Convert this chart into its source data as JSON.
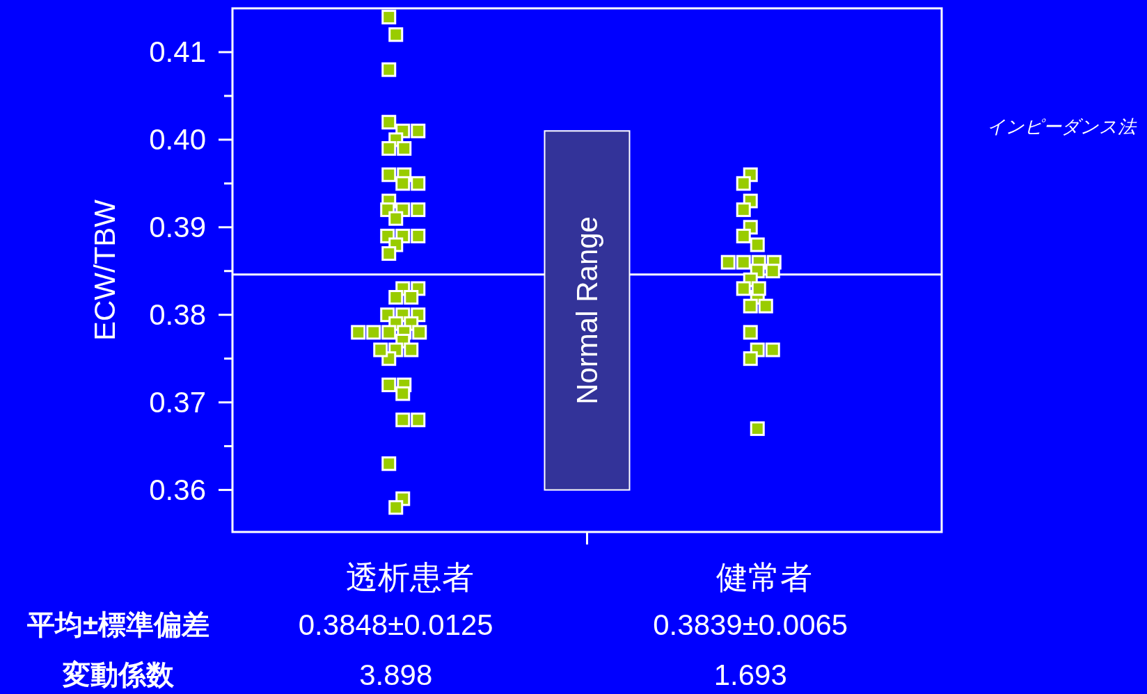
{
  "chart_data": {
    "type": "scatter",
    "ylabel": "ECW/TBW",
    "categories": [
      "透析患者",
      "健常者"
    ],
    "series": [
      {
        "color": "#99cc00",
        "x": [
          "透析患者",
          "透析患者",
          "透析患者",
          "透析患者",
          "透析患者",
          "透析患者",
          "透析患者",
          "透析患者",
          "透析患者",
          "透析患者",
          "透析患者",
          "透析患者",
          "透析患者",
          "透析患者",
          "透析患者",
          "透析患者",
          "透析患者",
          "透析患者",
          "透析患者",
          "透析患者",
          "透析患者",
          "透析患者",
          "透析患者",
          "透析患者",
          "透析患者",
          "透析患者",
          "透析患者",
          "透析患者",
          "透析患者",
          "透析患者",
          "透析患者",
          "透析患者",
          "透析患者",
          "透析患者",
          "透析患者",
          "透析患者",
          "透析患者",
          "透析患者",
          "透析患者",
          "透析患者",
          "透析患者",
          "透析患者",
          "透析患者",
          "透析患者",
          "透析患者",
          "透析患者",
          "透析患者",
          "透析患者",
          "透析患者",
          "透析患者",
          "健常者",
          "健常者",
          "健常者",
          "健常者",
          "健常者",
          "健常者",
          "健常者",
          "健常者",
          "健常者",
          "健常者",
          "健常者",
          "健常者",
          "健常者",
          "健常者",
          "健常者",
          "健常者",
          "健常者",
          "健常者",
          "健常者",
          "健常者",
          "健常者",
          "健常者",
          "健常者",
          "健常者"
        ],
        "values": [
          0.414,
          0.412,
          0.408,
          0.402,
          0.401,
          0.401,
          0.4,
          0.399,
          0.399,
          0.396,
          0.396,
          0.395,
          0.395,
          0.393,
          0.392,
          0.392,
          0.392,
          0.391,
          0.389,
          0.389,
          0.389,
          0.388,
          0.387,
          0.383,
          0.383,
          0.382,
          0.382,
          0.38,
          0.38,
          0.38,
          0.379,
          0.379,
          0.378,
          0.378,
          0.378,
          0.378,
          0.378,
          0.377,
          0.376,
          0.376,
          0.375,
          0.372,
          0.372,
          0.371,
          0.368,
          0.368,
          0.363,
          0.359,
          0.358,
          0.376,
          0.396,
          0.395,
          0.393,
          0.392,
          0.39,
          0.389,
          0.388,
          0.386,
          0.386,
          0.386,
          0.386,
          0.385,
          0.385,
          0.384,
          0.383,
          0.382,
          0.381,
          0.381,
          0.378,
          0.376,
          0.376,
          0.375,
          0.367,
          0.383
        ]
      }
    ],
    "marker": "square",
    "ylim": [
      0.3552,
      0.415
    ],
    "yticks": [
      0.36,
      {
        "value": 0.365,
        "label": null
      },
      0.37,
      {
        "value": 0.375,
        "label": null
      },
      0.38,
      {
        "value": 0.385,
        "label": null
      },
      0.39,
      {
        "value": 0.395,
        "label": null
      },
      {
        "value": 0.4,
        "label": "0.40"
      },
      {
        "value": 0.405,
        "label": null
      },
      0.41
    ],
    "ref_lines": [
      {
        "axis": "y",
        "value": 0.3846
      }
    ],
    "bands": [
      {
        "axis": "y",
        "from": 0.36,
        "to": 0.401,
        "label": "Normal Range",
        "color": "#333399"
      }
    ],
    "annotations": [
      "インピーダンス法",
      "平均±標準偏差",
      "0.3848±0.0125",
      "0.3839±0.0065",
      "変動係数",
      "3.898",
      "1.693"
    ]
  }
}
